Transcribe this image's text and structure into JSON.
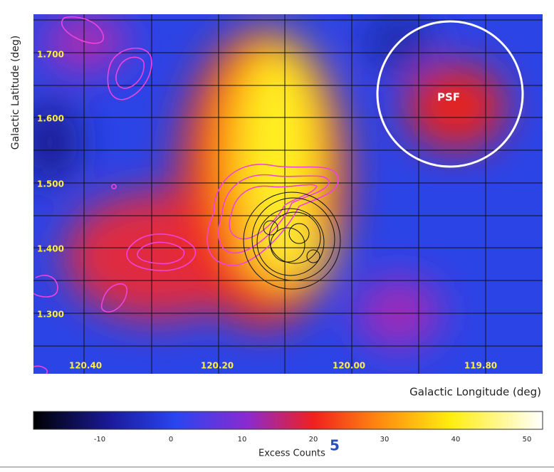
{
  "axes": {
    "y_label": "Galactic Latitude (deg)",
    "x_label": "Galactic Longitude (deg)",
    "y_tick_labels": [
      "1.700",
      "1.600",
      "1.500",
      "1.400",
      "1.300"
    ],
    "x_tick_labels": [
      "120.40",
      "120.20",
      "120.00",
      "119.80"
    ]
  },
  "psf_label": "PSF",
  "colorbar": {
    "label": "Excess Counts",
    "tick_labels": [
      "-10",
      "0",
      "10",
      "20",
      "30",
      "40",
      "50"
    ]
  },
  "page_number": "5"
}
